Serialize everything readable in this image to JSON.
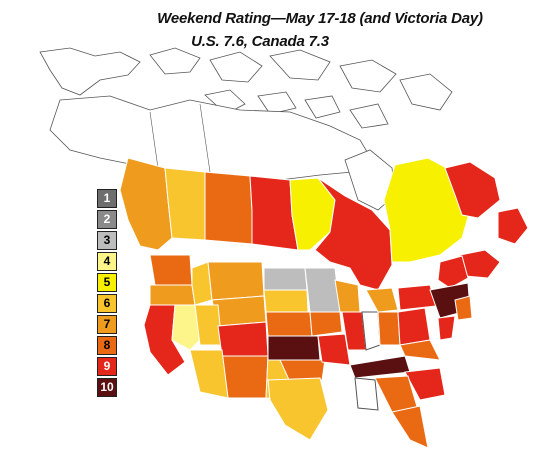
{
  "title_line1": "Weekend Rating—May 17-18 (and Victoria Day)",
  "title_line2": "U.S. 7.6, Canada 7.3",
  "legend": [
    {
      "label": "1",
      "color": "#6e6e6e"
    },
    {
      "label": "2",
      "color": "#8a8a8a"
    },
    {
      "label": "3",
      "color": "#bdbdbd"
    },
    {
      "label": "4",
      "color": "#fdf48a"
    },
    {
      "label": "5",
      "color": "#f7f000"
    },
    {
      "label": "6",
      "color": "#f8c52e"
    },
    {
      "label": "7",
      "color": "#ee9b1e"
    },
    {
      "label": "8",
      "color": "#ea6a14"
    },
    {
      "label": "9",
      "color": "#e4271a"
    },
    {
      "label": "10",
      "color": "#5a1010"
    }
  ]
}
